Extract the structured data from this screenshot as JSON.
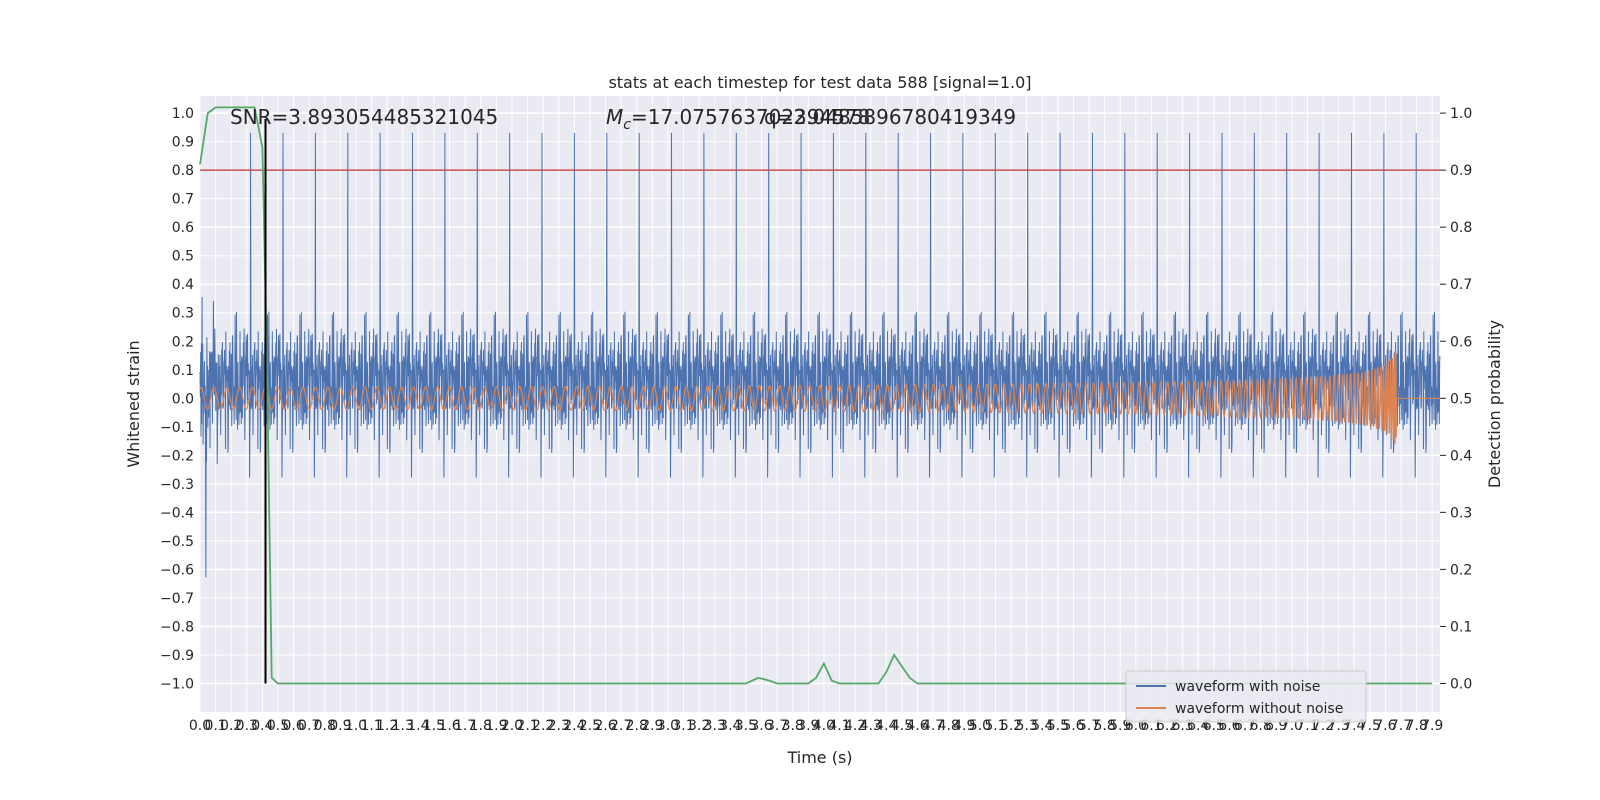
{
  "chart_data": {
    "type": "line",
    "title": "stats at each timestep for test data 588 [signal=1.0]",
    "xlabel": "Time (s)",
    "ylabel_left": "Whitened strain",
    "ylabel_right": "Detection probability",
    "xlim": [
      0.0,
      7.9
    ],
    "ylim_left": [
      -1.1,
      1.06
    ],
    "ylim_right": [
      -0.05,
      1.03
    ],
    "x_tick_step": 0.1,
    "y_left_ticks": [
      "1.0",
      "0.9",
      "0.8",
      "0.7",
      "0.6",
      "0.5",
      "0.4",
      "0.3",
      "0.2",
      "0.1",
      "0.0",
      "−0.1",
      "−0.2",
      "−0.3",
      "−0.4",
      "−0.5",
      "−0.6",
      "−0.7",
      "−0.8",
      "−0.9",
      "−1.0"
    ],
    "y_left_values": [
      1.0,
      0.9,
      0.8,
      0.7,
      0.6,
      0.5,
      0.4,
      0.3,
      0.2,
      0.1,
      0.0,
      -0.1,
      -0.2,
      -0.3,
      -0.4,
      -0.5,
      -0.6,
      -0.7,
      -0.8,
      -0.9,
      -1.0
    ],
    "y_right_ticks": [
      "1.0",
      "0.9",
      "0.8",
      "0.7",
      "0.6",
      "0.5",
      "0.4",
      "0.3",
      "0.2",
      "0.1",
      "0.0"
    ],
    "y_right_values": [
      1.0,
      0.9,
      0.8,
      0.7,
      0.6,
      0.5,
      0.4,
      0.3,
      0.2,
      0.1,
      0.0
    ],
    "grid": true,
    "annotations": {
      "snr": "SNR=3.893054485321045",
      "mc": "M",
      "mc_sub": "c",
      "mc_value": "=17.075763702394578",
      "q": "q=2.0485896780419349"
    },
    "threshold": {
      "value": 0.9,
      "axis": "right",
      "color": "#c44e52"
    },
    "detection_marker_x": 0.42,
    "series": [
      {
        "name": "waveform with noise",
        "color": "#4c72b0",
        "axis": "left",
        "description_range": [
          -1.0,
          1.0
        ],
        "typical_envelope": [
          -0.45,
          0.5
        ]
      },
      {
        "name": "waveform without noise",
        "color": "#dd8452",
        "axis": "left",
        "chirp_end_x": 7.67,
        "chirp_peak_amplitude": 0.2
      },
      {
        "name": "",
        "color": "#55a868",
        "axis": "right",
        "x": [
          0.0,
          0.05,
          0.1,
          0.15,
          0.2,
          0.25,
          0.3,
          0.35,
          0.4,
          0.43,
          0.46,
          0.5,
          0.55,
          0.6,
          0.9,
          1.5,
          2.0,
          2.5,
          3.0,
          3.5,
          3.58,
          3.65,
          3.7,
          3.75,
          3.85,
          3.9,
          3.95,
          4.0,
          4.05,
          4.1,
          4.2,
          4.3,
          4.35,
          4.4,
          4.45,
          4.5,
          4.55,
          4.6,
          4.7,
          5.0,
          6.0,
          7.0,
          7.9
        ],
        "y": [
          0.91,
          1.0,
          1.01,
          1.01,
          1.01,
          1.01,
          1.01,
          1.01,
          0.94,
          0.55,
          0.01,
          0.0,
          0.0,
          0.0,
          0.0,
          0.0,
          0.0,
          0.0,
          0.0,
          0.0,
          0.01,
          0.005,
          0.0,
          0.0,
          0.0,
          0.0,
          0.01,
          0.035,
          0.005,
          0.0,
          0.0,
          0.0,
          0.0,
          0.02,
          0.05,
          0.03,
          0.01,
          0.0,
          0.0,
          0.0,
          0.0,
          0.0,
          0.0
        ]
      }
    ],
    "legend": {
      "placement": "lower-right",
      "entries": [
        "waveform with noise",
        "waveform without noise"
      ]
    }
  }
}
